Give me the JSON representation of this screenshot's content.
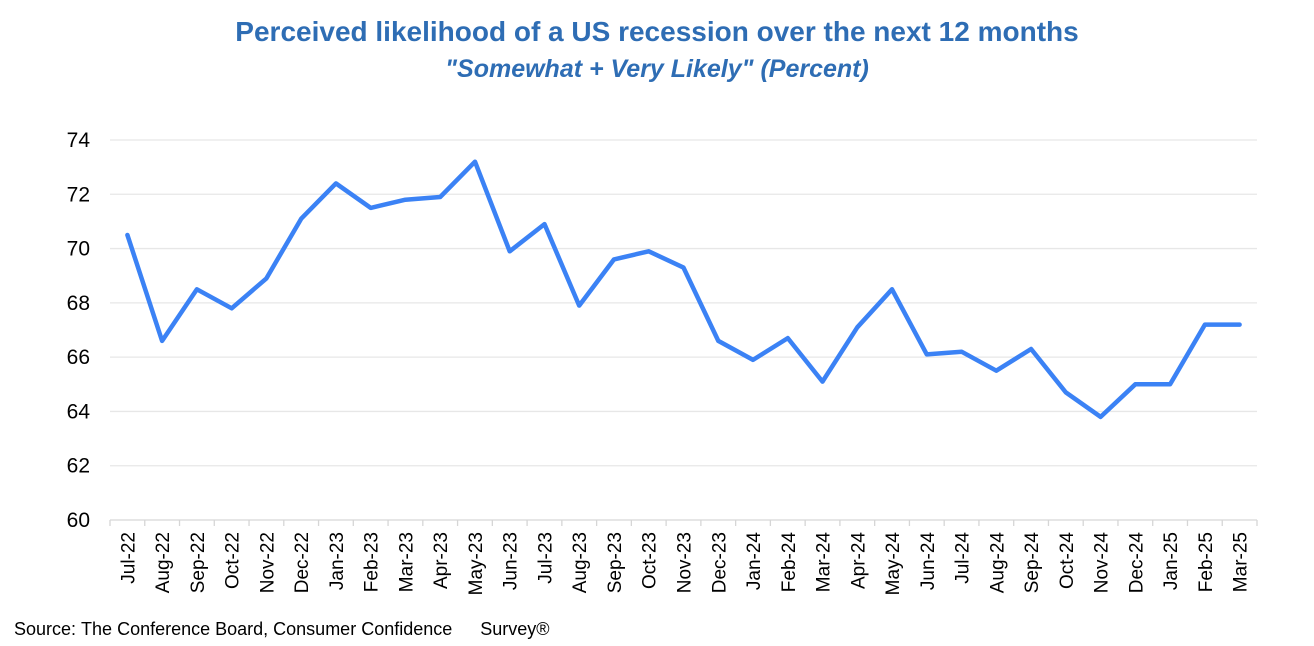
{
  "header": {
    "title": "Perceived likelihood of a US recession over the next 12 months",
    "subtitle": "\"Somewhat + Very Likely\" (Percent)"
  },
  "footer": {
    "source_prefix": "Source:",
    "source_body": "The Conference Board, Consumer Confidence",
    "source_suffix": "Survey®"
  },
  "colors": {
    "title_blue": "#2E6DB4",
    "line_blue": "#3B82F5",
    "gridline": "#E7E7E7",
    "axis": "#D6D6D6",
    "tick_text": "#000000"
  },
  "chart_data": {
    "type": "line",
    "title": "Perceived likelihood of a US recession over the next 12 months",
    "subtitle": "\"Somewhat + Very Likely\" (Percent)",
    "categories": [
      "Jul-22",
      "Aug-22",
      "Sep-22",
      "Oct-22",
      "Nov-22",
      "Dec-22",
      "Jan-23",
      "Feb-23",
      "Mar-23",
      "Apr-23",
      "May-23",
      "Jun-23",
      "Jul-23",
      "Aug-23",
      "Sep-23",
      "Oct-23",
      "Nov-23",
      "Dec-23",
      "Jan-24",
      "Feb-24",
      "Mar-24",
      "Apr-24",
      "May-24",
      "Jun-24",
      "Jul-24",
      "Aug-24",
      "Sep-24",
      "Oct-24",
      "Nov-24",
      "Dec-24",
      "Jan-25",
      "Feb-25",
      "Mar-25"
    ],
    "values": [
      70.5,
      66.6,
      68.5,
      67.8,
      68.9,
      71.1,
      72.4,
      71.5,
      71.8,
      71.9,
      73.2,
      69.9,
      70.9,
      67.9,
      69.6,
      69.9,
      69.3,
      66.6,
      65.9,
      66.7,
      65.1,
      67.1,
      68.5,
      66.1,
      66.2,
      65.5,
      66.3,
      64.7,
      63.8,
      65.0,
      65.0,
      67.2,
      67.2
    ],
    "ylabel": "",
    "xlabel": "",
    "ylim": [
      60,
      74
    ],
    "yticks": [
      60,
      62,
      64,
      66,
      68,
      70,
      72,
      74
    ],
    "grid": "horizontal",
    "legend": "none",
    "series_name": "Somewhat + Very Likely (Percent)"
  }
}
